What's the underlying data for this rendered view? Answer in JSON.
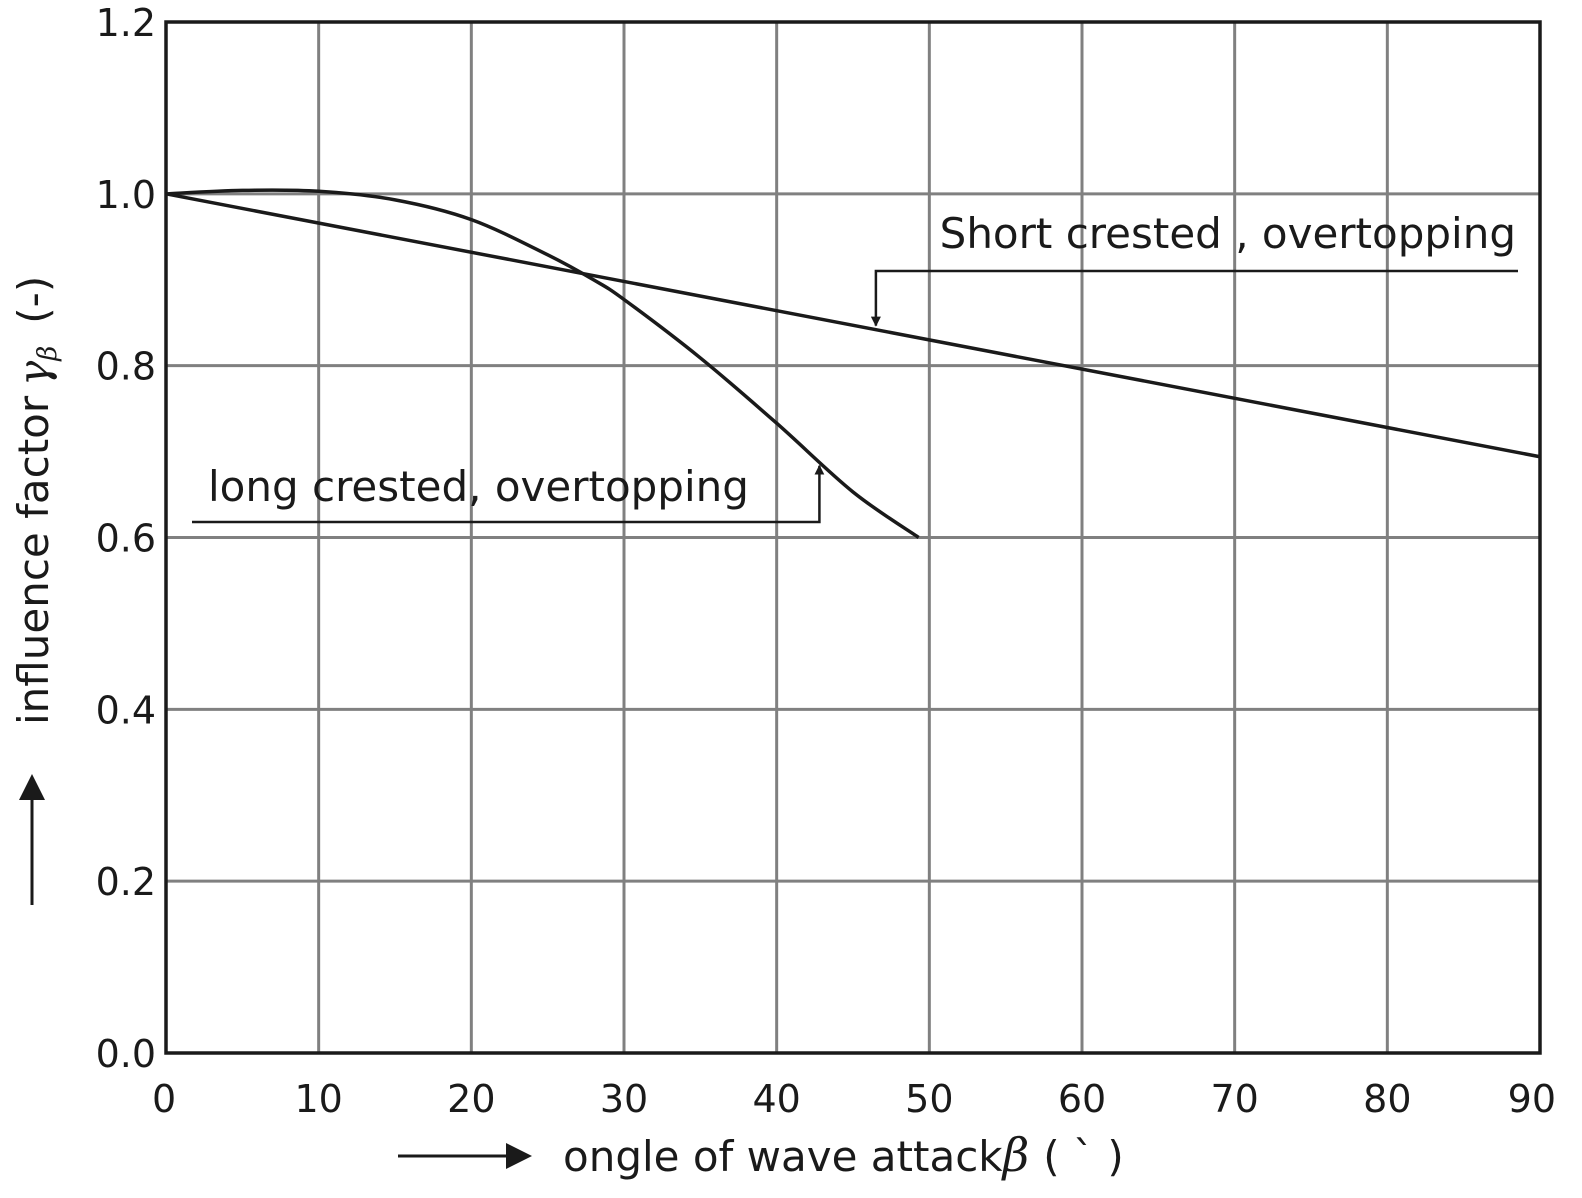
{
  "chart_data": {
    "type": "line",
    "xlabel": "ongle of wave attack",
    "xlabel_symbol": "β",
    "xlabel_unit": "( ` )",
    "ylabel": "influence factor",
    "ylabel_symbol": "γ",
    "ylabel_subscript": "β",
    "ylabel_unit": "(-)",
    "xlim": [
      0,
      90
    ],
    "ylim": [
      0,
      1.2
    ],
    "x_ticks": [
      0,
      10,
      20,
      30,
      40,
      50,
      60,
      70,
      80,
      90
    ],
    "y_ticks": [
      "0.0",
      "0.2",
      "0.4",
      "0.6",
      "0.8",
      "1.0",
      "1.2"
    ],
    "grid": true,
    "series": [
      {
        "name": "Short crested , overtopping",
        "x": [
          0,
          90
        ],
        "y": [
          1.0,
          0.694
        ]
      },
      {
        "name": "long crested, overtopping",
        "x": [
          0,
          5,
          10,
          15,
          20,
          25,
          28,
          30,
          35,
          40,
          45,
          49.3
        ],
        "y": [
          1.0,
          1.004,
          1.003,
          0.993,
          0.97,
          0.929,
          0.9,
          0.877,
          0.809,
          0.733,
          0.653,
          0.6
        ]
      }
    ],
    "annotations": [
      {
        "text": "Short crested , overtopping",
        "series": 0,
        "arrow_x": 46.5
      },
      {
        "text": "long crested, overtopping",
        "series": 1,
        "arrow_x": 42.8
      }
    ]
  }
}
